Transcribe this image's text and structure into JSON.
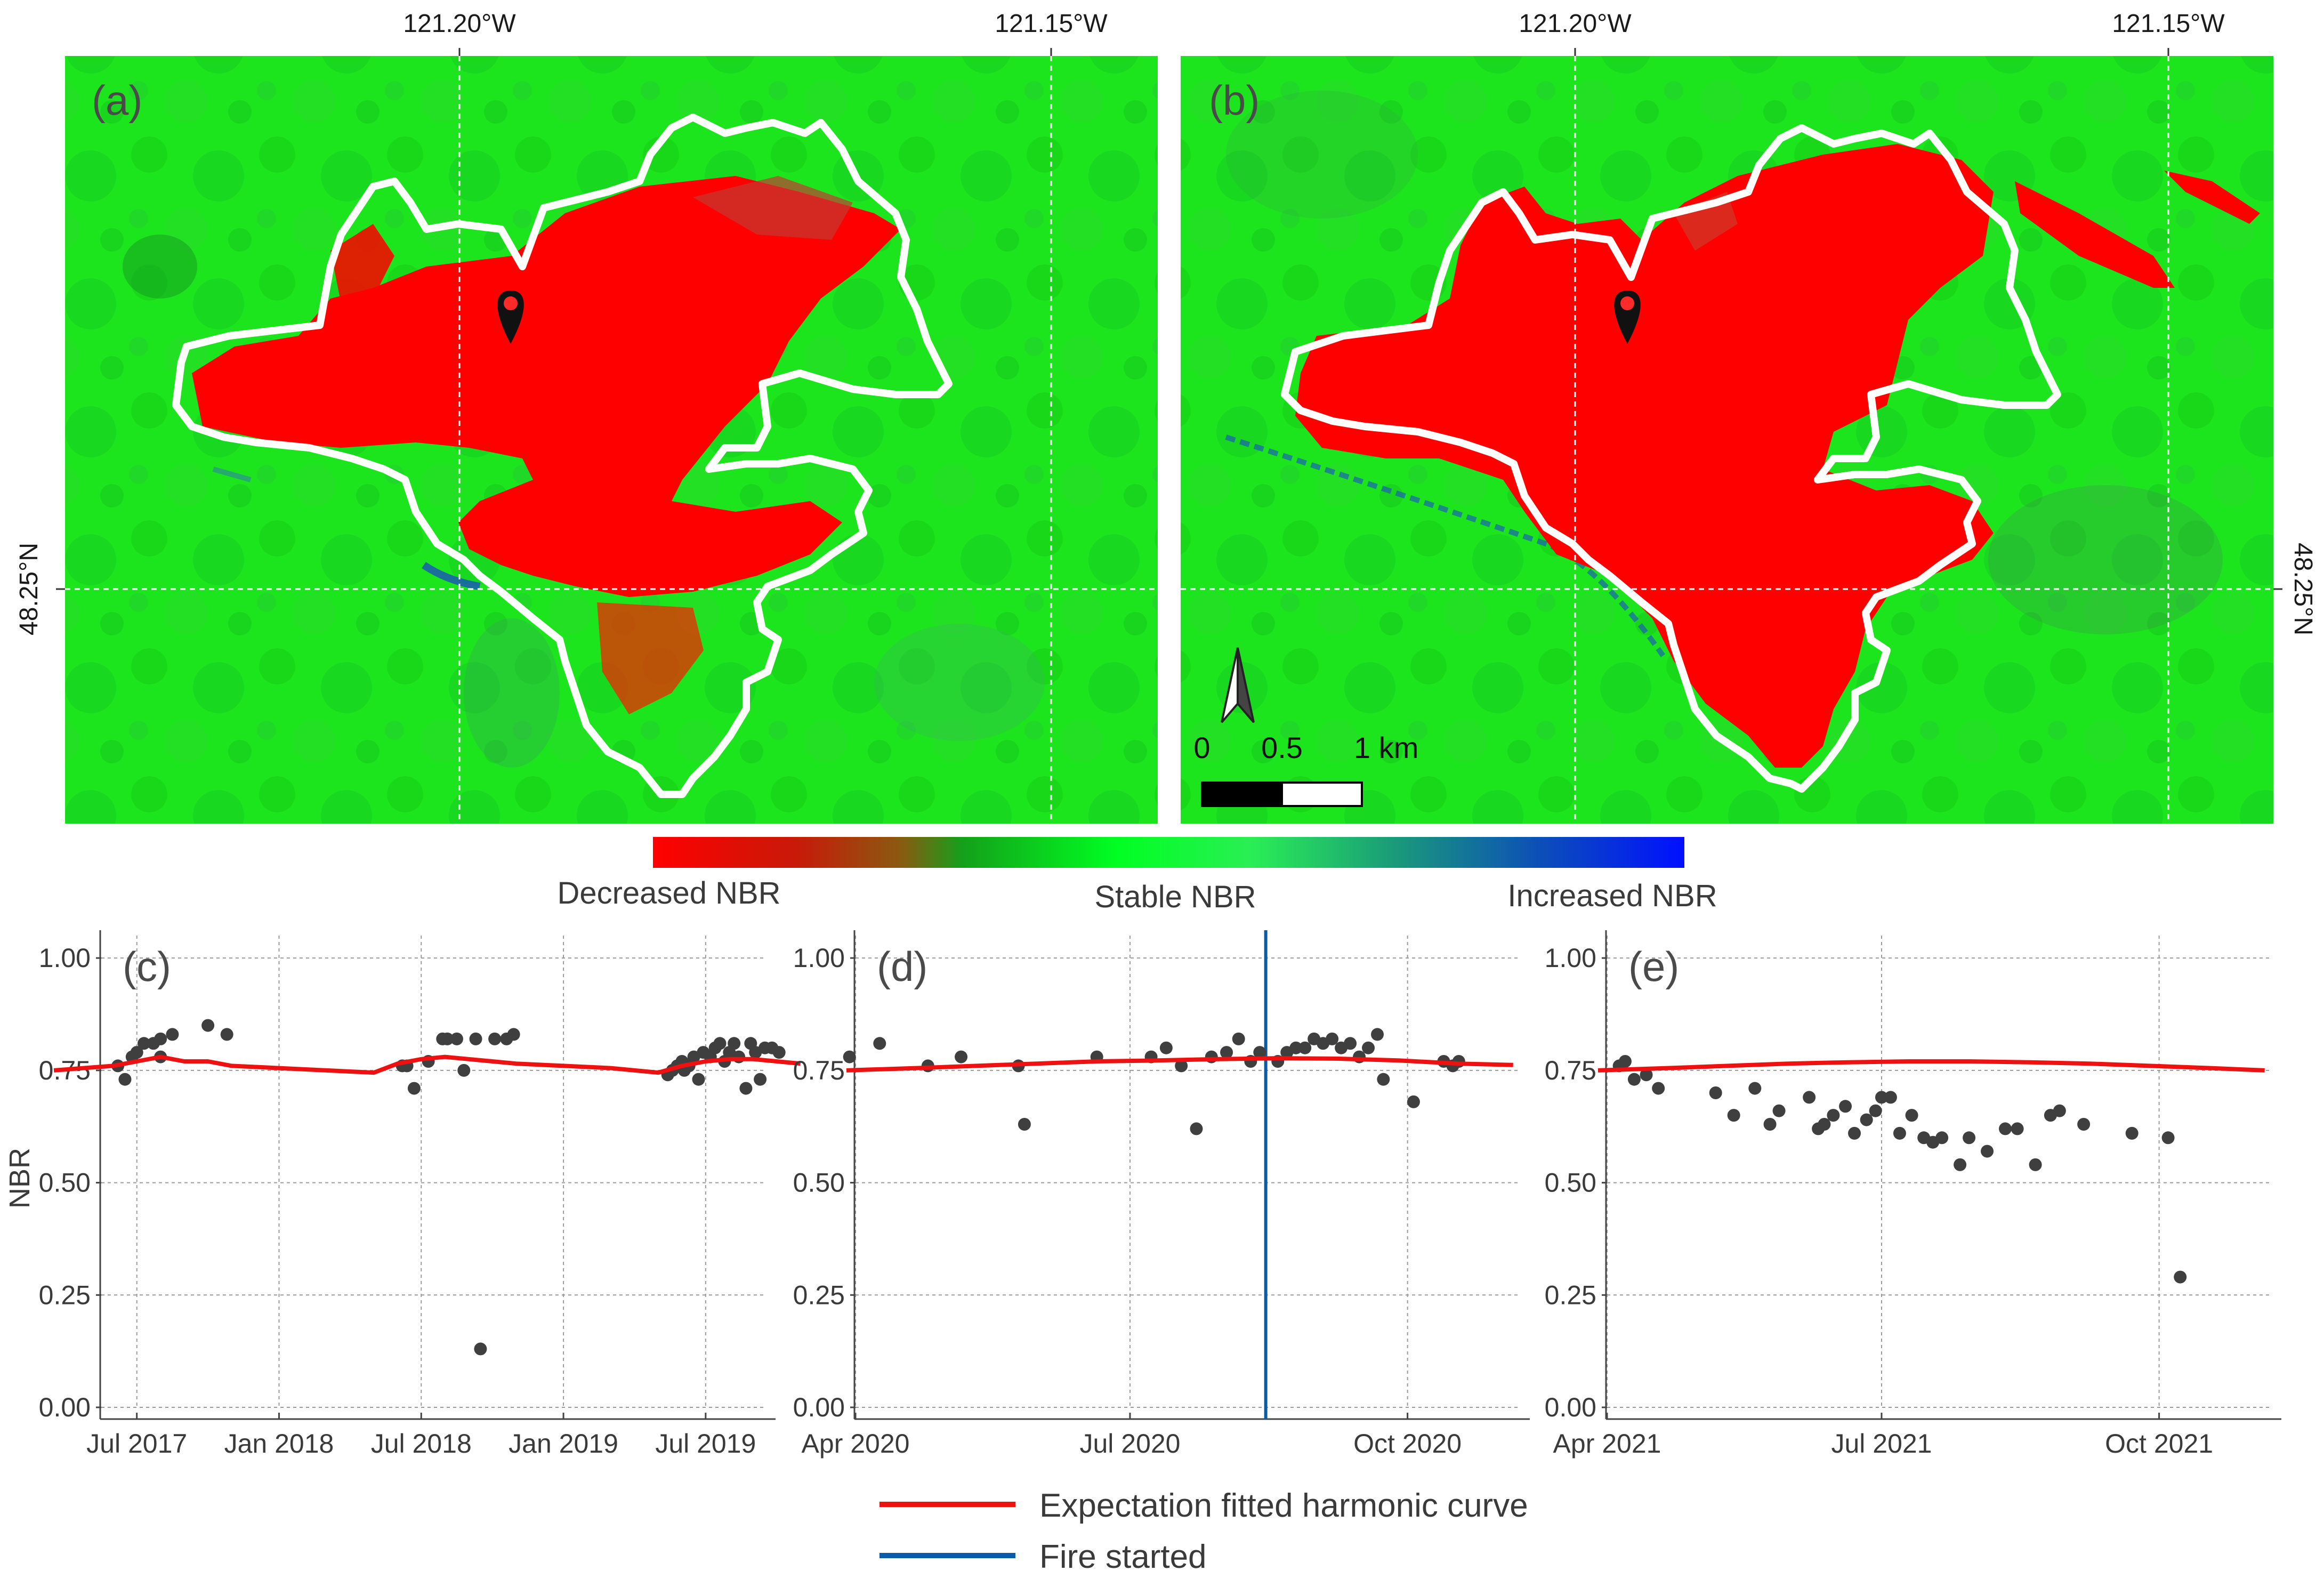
{
  "maps": {
    "lon_labels": [
      "121.20°W",
      "121.15°W"
    ],
    "lat_label": "48.25°N",
    "panels": [
      {
        "label": "(a)"
      },
      {
        "label": "(b)"
      }
    ],
    "scale_bar": {
      "labels": [
        "0",
        "0.5",
        "1 km"
      ]
    },
    "north_arrow_icon": "north-arrow-icon",
    "marker_icon": "map-pin-icon"
  },
  "colorbar": {
    "labels": [
      "Decreased NBR",
      "Stable NBR",
      "Increased NBR"
    ],
    "colors": [
      "#ff0000",
      "#00ff22",
      "#0010ff"
    ]
  },
  "chart_data": [
    {
      "type": "scatter",
      "panel": "(c)",
      "ylabel": "NBR",
      "ylim": [
        0,
        1.05
      ],
      "yticks": [
        "0.00",
        "0.25",
        "0.50",
        "0.75",
        "1.00"
      ],
      "xlim": [
        -0.5,
        27.5
      ],
      "xticks": [
        {
          "x": 1,
          "label": "Jul 2017"
        },
        {
          "x": 7,
          "label": "Jan 2018"
        },
        {
          "x": 13,
          "label": "Jul 2018"
        },
        {
          "x": 19,
          "label": "Jan 2019"
        },
        {
          "x": 25,
          "label": "Jul 2019"
        }
      ],
      "points": [
        [
          0.2,
          0.76
        ],
        [
          0.5,
          0.73
        ],
        [
          0.8,
          0.78
        ],
        [
          1.0,
          0.79
        ],
        [
          1.3,
          0.81
        ],
        [
          1.7,
          0.81
        ],
        [
          2.0,
          0.78
        ],
        [
          2.0,
          0.82
        ],
        [
          2.5,
          0.83
        ],
        [
          4.0,
          0.85
        ],
        [
          4.8,
          0.83
        ],
        [
          12.2,
          0.76
        ],
        [
          12.4,
          0.76
        ],
        [
          12.7,
          0.71
        ],
        [
          13.3,
          0.77
        ],
        [
          13.9,
          0.82
        ],
        [
          14.1,
          0.82
        ],
        [
          14.5,
          0.82
        ],
        [
          14.8,
          0.75
        ],
        [
          15.3,
          0.82
        ],
        [
          15.5,
          0.13
        ],
        [
          16.1,
          0.82
        ],
        [
          16.6,
          0.82
        ],
        [
          16.9,
          0.83
        ],
        [
          23.4,
          0.74
        ],
        [
          23.6,
          0.75
        ],
        [
          23.8,
          0.76
        ],
        [
          24.0,
          0.77
        ],
        [
          24.1,
          0.75
        ],
        [
          24.3,
          0.76
        ],
        [
          24.5,
          0.78
        ],
        [
          24.7,
          0.73
        ],
        [
          24.9,
          0.79
        ],
        [
          25.2,
          0.78
        ],
        [
          25.4,
          0.8
        ],
        [
          25.6,
          0.81
        ],
        [
          25.8,
          0.77
        ],
        [
          26.0,
          0.79
        ],
        [
          26.2,
          0.81
        ],
        [
          26.4,
          0.78
        ],
        [
          26.7,
          0.71
        ],
        [
          26.9,
          0.81
        ],
        [
          27.1,
          0.79
        ],
        [
          27.3,
          0.73
        ],
        [
          27.5,
          0.8
        ],
        [
          27.8,
          0.8
        ],
        [
          28.1,
          0.79
        ]
      ],
      "curve": [
        [
          -2.5,
          0.75
        ],
        [
          0,
          0.76
        ],
        [
          1,
          0.77
        ],
        [
          2,
          0.78
        ],
        [
          3,
          0.77
        ],
        [
          4,
          0.77
        ],
        [
          5,
          0.76
        ],
        [
          7,
          0.755
        ],
        [
          9,
          0.75
        ],
        [
          11,
          0.745
        ],
        [
          12,
          0.765
        ],
        [
          13,
          0.775
        ],
        [
          14,
          0.78
        ],
        [
          15,
          0.775
        ],
        [
          16,
          0.77
        ],
        [
          17,
          0.765
        ],
        [
          19,
          0.76
        ],
        [
          21,
          0.755
        ],
        [
          23,
          0.745
        ],
        [
          24,
          0.76
        ],
        [
          25,
          0.77
        ],
        [
          26,
          0.775
        ],
        [
          27,
          0.775
        ],
        [
          28,
          0.77
        ],
        [
          29,
          0.765
        ]
      ]
    },
    {
      "type": "scatter",
      "panel": "(d)",
      "ylim": [
        0,
        1.05
      ],
      "yticks": [
        "0.00",
        "0.25",
        "0.50",
        "0.75",
        "1.00"
      ],
      "xlim": [
        0,
        220
      ],
      "xticks": [
        {
          "x": 0,
          "label": "Apr 2020"
        },
        {
          "x": 91,
          "label": "Jul 2020"
        },
        {
          "x": 183,
          "label": "Oct 2020"
        }
      ],
      "fire_start": 136,
      "points": [
        [
          -2,
          0.78
        ],
        [
          8,
          0.81
        ],
        [
          24,
          0.76
        ],
        [
          35,
          0.78
        ],
        [
          54,
          0.76
        ],
        [
          56,
          0.63
        ],
        [
          80,
          0.78
        ],
        [
          98,
          0.78
        ],
        [
          103,
          0.8
        ],
        [
          108,
          0.76
        ],
        [
          113,
          0.62
        ],
        [
          118,
          0.78
        ],
        [
          123,
          0.79
        ],
        [
          127,
          0.82
        ],
        [
          131,
          0.77
        ],
        [
          134,
          0.79
        ],
        [
          140,
          0.77
        ],
        [
          143,
          0.79
        ],
        [
          146,
          0.8
        ],
        [
          149,
          0.8
        ],
        [
          152,
          0.82
        ],
        [
          155,
          0.81
        ],
        [
          158,
          0.82
        ],
        [
          161,
          0.8
        ],
        [
          164,
          0.81
        ],
        [
          167,
          0.78
        ],
        [
          170,
          0.8
        ],
        [
          173,
          0.83
        ],
        [
          175,
          0.73
        ],
        [
          185,
          0.68
        ],
        [
          195,
          0.77
        ],
        [
          198,
          0.76
        ],
        [
          200,
          0.77
        ]
      ],
      "curve": [
        [
          -3,
          0.75
        ],
        [
          20,
          0.755
        ],
        [
          40,
          0.76
        ],
        [
          60,
          0.765
        ],
        [
          80,
          0.77
        ],
        [
          100,
          0.772
        ],
        [
          120,
          0.775
        ],
        [
          140,
          0.777
        ],
        [
          160,
          0.776
        ],
        [
          180,
          0.772
        ],
        [
          200,
          0.765
        ],
        [
          218,
          0.762
        ]
      ]
    },
    {
      "type": "scatter",
      "panel": "(e)",
      "ylim": [
        0,
        1.05
      ],
      "yticks": [
        "0.00",
        "0.25",
        "0.50",
        "0.75",
        "1.00"
      ],
      "xlim": [
        0,
        220
      ],
      "xticks": [
        {
          "x": 0,
          "label": "Apr 2021"
        },
        {
          "x": 91,
          "label": "Jul 2021"
        },
        {
          "x": 183,
          "label": "Oct 2021"
        }
      ],
      "points": [
        [
          4,
          0.76
        ],
        [
          6,
          0.77
        ],
        [
          9,
          0.73
        ],
        [
          13,
          0.74
        ],
        [
          17,
          0.71
        ],
        [
          36,
          0.7
        ],
        [
          42,
          0.65
        ],
        [
          49,
          0.71
        ],
        [
          54,
          0.63
        ],
        [
          57,
          0.66
        ],
        [
          67,
          0.69
        ],
        [
          70,
          0.62
        ],
        [
          72,
          0.63
        ],
        [
          75,
          0.65
        ],
        [
          79,
          0.67
        ],
        [
          82,
          0.61
        ],
        [
          86,
          0.64
        ],
        [
          89,
          0.66
        ],
        [
          91,
          0.69
        ],
        [
          94,
          0.69
        ],
        [
          97,
          0.61
        ],
        [
          101,
          0.65
        ],
        [
          105,
          0.6
        ],
        [
          108,
          0.59
        ],
        [
          111,
          0.6
        ],
        [
          117,
          0.54
        ],
        [
          120,
          0.6
        ],
        [
          126,
          0.57
        ],
        [
          132,
          0.62
        ],
        [
          136,
          0.62
        ],
        [
          142,
          0.54
        ],
        [
          147,
          0.65
        ],
        [
          150,
          0.66
        ],
        [
          158,
          0.63
        ],
        [
          174,
          0.61
        ],
        [
          186,
          0.6
        ],
        [
          190,
          0.29
        ]
      ],
      "curve": [
        [
          -3,
          0.75
        ],
        [
          20,
          0.755
        ],
        [
          40,
          0.76
        ],
        [
          60,
          0.765
        ],
        [
          80,
          0.768
        ],
        [
          100,
          0.77
        ],
        [
          120,
          0.77
        ],
        [
          140,
          0.768
        ],
        [
          160,
          0.765
        ],
        [
          180,
          0.76
        ],
        [
          200,
          0.755
        ],
        [
          218,
          0.75
        ]
      ]
    }
  ],
  "legend": {
    "items": [
      {
        "label": "Expectation fitted harmonic curve",
        "color": "#ee1111"
      },
      {
        "label": "Fire started",
        "color": "#0e5aa7"
      }
    ]
  }
}
